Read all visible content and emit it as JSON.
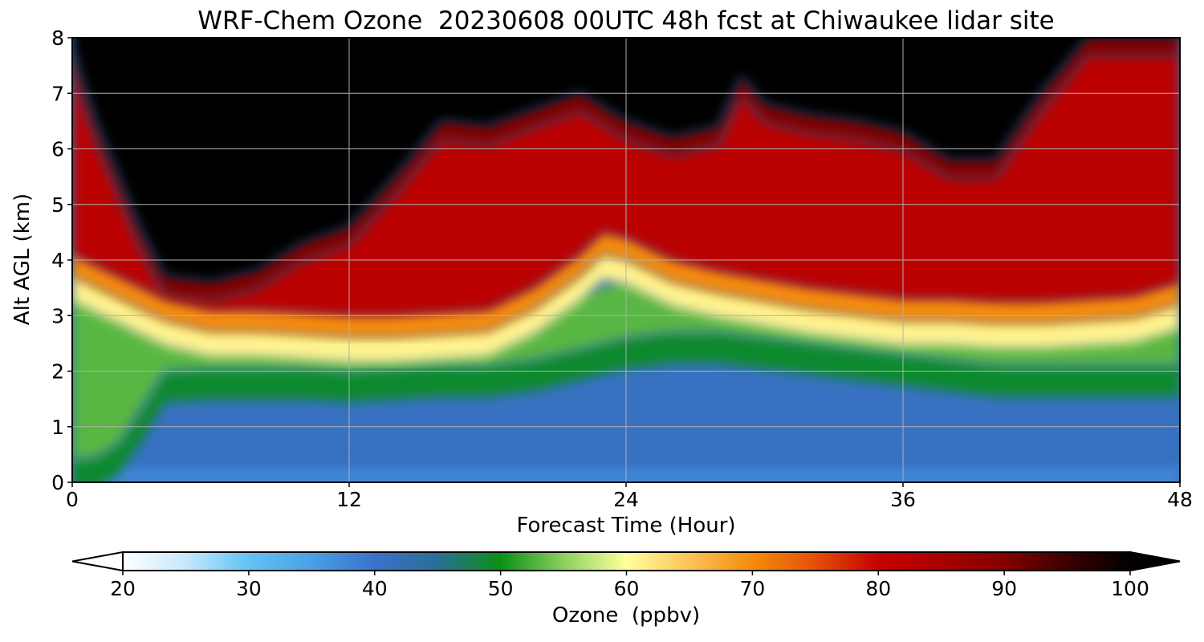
{
  "chart_data": {
    "type": "heatmap",
    "title": "WRF-Chem Ozone  20230608 00UTC 48h fcst at Chiwaukee lidar site",
    "xlabel": "Forecast Time (Hour)",
    "ylabel": "Alt AGL (km)",
    "xlim": [
      0,
      48
    ],
    "ylim": [
      0,
      8
    ],
    "xticks": [
      "0",
      "12",
      "24",
      "36",
      "48"
    ],
    "yticks": [
      "0",
      "1",
      "2",
      "3",
      "4",
      "5",
      "6",
      "7",
      "8"
    ],
    "grid": true,
    "x_hours": [
      0,
      1,
      2,
      4,
      6,
      8,
      10,
      12,
      14,
      16,
      18,
      20,
      22,
      24,
      26,
      28,
      30,
      32,
      34,
      36,
      38,
      40,
      42,
      44,
      46,
      48
    ],
    "features": [
      {
        "name": "boundary-layer top",
        "x_hours": [
          0,
          1,
          2,
          3,
          4,
          6,
          8,
          10,
          12,
          14,
          16,
          18,
          20,
          22,
          24,
          26,
          28,
          30,
          32,
          34,
          36,
          38,
          40,
          42,
          44,
          46,
          48
        ],
        "altitude_km": [
          0.3,
          0.35,
          0.6,
          1.2,
          1.9,
          1.95,
          1.95,
          1.95,
          1.9,
          1.95,
          2.0,
          2.0,
          2.1,
          2.3,
          2.5,
          2.6,
          2.6,
          2.5,
          2.4,
          2.3,
          2.2,
          2.1,
          2.0,
          2.0,
          2.0,
          2.0,
          2.0
        ]
      },
      {
        "name": "ozone-rich layer base",
        "x_hours": [
          0,
          2,
          4,
          6,
          8,
          10,
          12,
          14,
          16,
          18,
          20,
          22,
          23,
          24,
          25,
          26,
          28,
          30,
          32,
          34,
          36,
          38,
          40,
          42,
          44,
          46,
          48
        ],
        "altitude_km": [
          3.8,
          3.4,
          3.0,
          2.8,
          2.8,
          2.75,
          2.7,
          2.7,
          2.75,
          2.8,
          3.2,
          3.8,
          4.2,
          4.1,
          3.9,
          3.7,
          3.5,
          3.35,
          3.2,
          3.1,
          3.0,
          3.0,
          2.95,
          2.95,
          3.0,
          3.05,
          3.3
        ]
      },
      {
        "name": "tropopause level",
        "x_hours": [
          0,
          1,
          2,
          3,
          4,
          6,
          8,
          10,
          12,
          14,
          16,
          18,
          20,
          22,
          24,
          26,
          28,
          29,
          30,
          32,
          34,
          36,
          38,
          40,
          42,
          44,
          46,
          48
        ],
        "altitude_km": [
          7.8,
          6.5,
          5.5,
          4.5,
          3.7,
          3.6,
          3.8,
          4.3,
          4.6,
          5.5,
          6.5,
          6.4,
          6.7,
          7.0,
          6.5,
          6.2,
          6.4,
          7.3,
          6.8,
          6.6,
          6.5,
          6.3,
          5.8,
          5.8,
          7.0,
          8.0,
          8.0,
          8.0
        ]
      }
    ],
    "colorbar": {
      "label": "Ozone  (ppbv)",
      "range": [
        20,
        100
      ],
      "ticks": [
        "20",
        "30",
        "40",
        "50",
        "60",
        "70",
        "80",
        "90",
        "100"
      ],
      "extend": "both",
      "stops": [
        {
          "value": 20,
          "color": "#ffffff"
        },
        {
          "value": 25,
          "color": "#c6e8fb"
        },
        {
          "value": 30,
          "color": "#63c2f3"
        },
        {
          "value": 35,
          "color": "#4aa0e4"
        },
        {
          "value": 40,
          "color": "#3a71cc"
        },
        {
          "value": 45,
          "color": "#2a6f95"
        },
        {
          "value": 50,
          "color": "#0a9014"
        },
        {
          "value": 55,
          "color": "#8cd060"
        },
        {
          "value": 60,
          "color": "#ffff9c"
        },
        {
          "value": 65,
          "color": "#fbc25a"
        },
        {
          "value": 70,
          "color": "#f58c08"
        },
        {
          "value": 75,
          "color": "#e45008"
        },
        {
          "value": 80,
          "color": "#c80000"
        },
        {
          "value": 85,
          "color": "#a80000"
        },
        {
          "value": 90,
          "color": "#840000"
        },
        {
          "value": 95,
          "color": "#3c0000"
        },
        {
          "value": 100,
          "color": "#000000"
        }
      ]
    }
  }
}
